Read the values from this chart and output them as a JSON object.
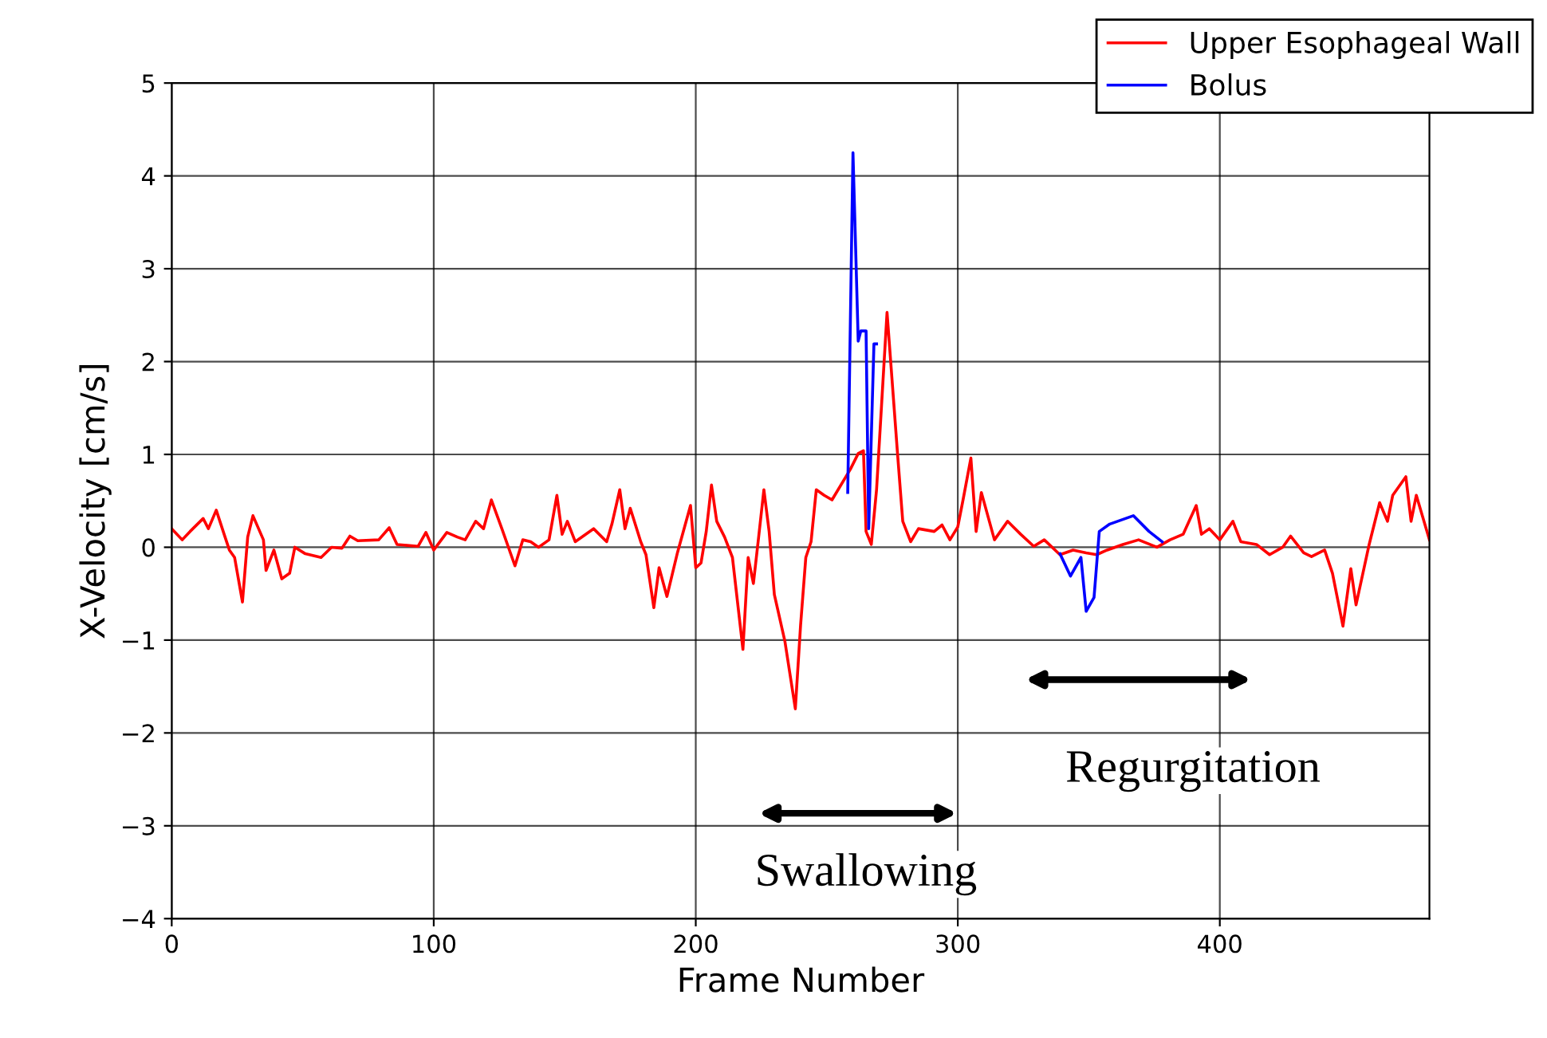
{
  "chart_data": {
    "type": "line",
    "xlabel": "Frame Number",
    "ylabel": "X-Velocity [cm/s]",
    "xlim": [
      0,
      480
    ],
    "xticks": [
      0,
      100,
      200,
      300,
      400
    ],
    "ylim": [
      -4,
      5
    ],
    "yticks": [
      {
        "value": -4,
        "label": "−4"
      },
      {
        "value": -3,
        "label": "−3"
      },
      {
        "value": -2,
        "label": "−2"
      },
      {
        "value": -1,
        "label": "−1"
      },
      0,
      1,
      2,
      3,
      4,
      5
    ],
    "grid": true,
    "legend": "top right",
    "line_style": "solid",
    "marker": "none",
    "series": [
      {
        "name": "Upper Esophageal Wall",
        "color": "#ff0000",
        "x": [
          0,
          4,
          7,
          12,
          14,
          17,
          20,
          22,
          24,
          27,
          29,
          31,
          35,
          36,
          39,
          42,
          45,
          47,
          51,
          57,
          61,
          65,
          68,
          71,
          79,
          83,
          86,
          94,
          97,
          100,
          105,
          109,
          112,
          116,
          119,
          122,
          126,
          131,
          134,
          137,
          140,
          144,
          147,
          149,
          151,
          154,
          161,
          166,
          168,
          171,
          173,
          175,
          179,
          181,
          184,
          186,
          189,
          193,
          198,
          200,
          202,
          204,
          206,
          208,
          211,
          214,
          218,
          220,
          222,
          224,
          226,
          228,
          230,
          234,
          238,
          240,
          242,
          244,
          246,
          249,
          252,
          259,
          262,
          264,
          265,
          267,
          269,
          273,
          277,
          279,
          282,
          285,
          291,
          294,
          297,
          300,
          302,
          305,
          307,
          309,
          314,
          319,
          324,
          329,
          333,
          339,
          344,
          349,
          353,
          357,
          363,
          369,
          376,
          381,
          386,
          391,
          393,
          396,
          400,
          405,
          408,
          414,
          419,
          424,
          427,
          432,
          435,
          440,
          443,
          447,
          450,
          452,
          457,
          461,
          464,
          466,
          471,
          473,
          475,
          480
        ],
        "values": [
          0.2,
          0.08,
          0.17,
          0.31,
          0.2,
          0.4,
          0.14,
          -0.03,
          -0.11,
          -0.59,
          0.11,
          0.34,
          0.08,
          -0.25,
          -0.03,
          -0.34,
          -0.28,
          0,
          -0.07,
          -0.11,
          0,
          -0.01,
          0.12,
          0.07,
          0.08,
          0.21,
          0.03,
          0.01,
          0.16,
          -0.03,
          0.16,
          0.11,
          0.08,
          0.28,
          0.2,
          0.51,
          0.2,
          -0.2,
          0.08,
          0.06,
          0,
          0.08,
          0.56,
          0.14,
          0.28,
          0.06,
          0.2,
          0.06,
          0.25,
          0.62,
          0.2,
          0.42,
          0.06,
          -0.08,
          -0.65,
          -0.22,
          -0.53,
          -0.06,
          0.45,
          -0.22,
          -0.17,
          0.17,
          0.67,
          0.28,
          0.11,
          -0.11,
          -1.1,
          -0.11,
          -0.39,
          0.11,
          0.62,
          0.17,
          -0.51,
          -1.01,
          -1.74,
          -0.84,
          -0.11,
          0.06,
          0.62,
          0.56,
          0.51,
          0.84,
          1.01,
          1.04,
          0.17,
          0.03,
          0.62,
          2.53,
          1.01,
          0.28,
          0.06,
          0.2,
          0.17,
          0.24,
          0.08,
          0.22,
          0.51,
          0.96,
          0.17,
          0.59,
          0.08,
          0.28,
          0.14,
          0.01,
          0.08,
          -0.08,
          -0.03,
          -0.06,
          -0.08,
          -0.03,
          0.03,
          0.08,
          0,
          0.08,
          0.14,
          0.45,
          0.14,
          0.2,
          0.08,
          0.28,
          0.06,
          0.03,
          -0.08,
          0,
          0.12,
          -0.06,
          -0.1,
          -0.03,
          -0.28,
          -0.85,
          -0.23,
          -0.62,
          0.03,
          0.48,
          0.28,
          0.56,
          0.76,
          0.28,
          0.56,
          0.08
        ]
      },
      {
        "name": "Bolus",
        "color": "#0000ff",
        "x": [
          258,
          260,
          262,
          263,
          265,
          266,
          268,
          269,
          300,
          339,
          343,
          347,
          349,
          352,
          354,
          358,
          367,
          373,
          378
        ],
        "values": [
          0.59,
          4.25,
          2.22,
          2.33,
          2.33,
          0.2,
          2.19,
          2.19,
          null,
          -0.07,
          -0.31,
          -0.11,
          -0.69,
          -0.54,
          0.17,
          0.25,
          0.34,
          0.17,
          0.06
        ]
      }
    ],
    "annotations": [
      "Swallowing",
      "Regurgitation"
    ]
  }
}
